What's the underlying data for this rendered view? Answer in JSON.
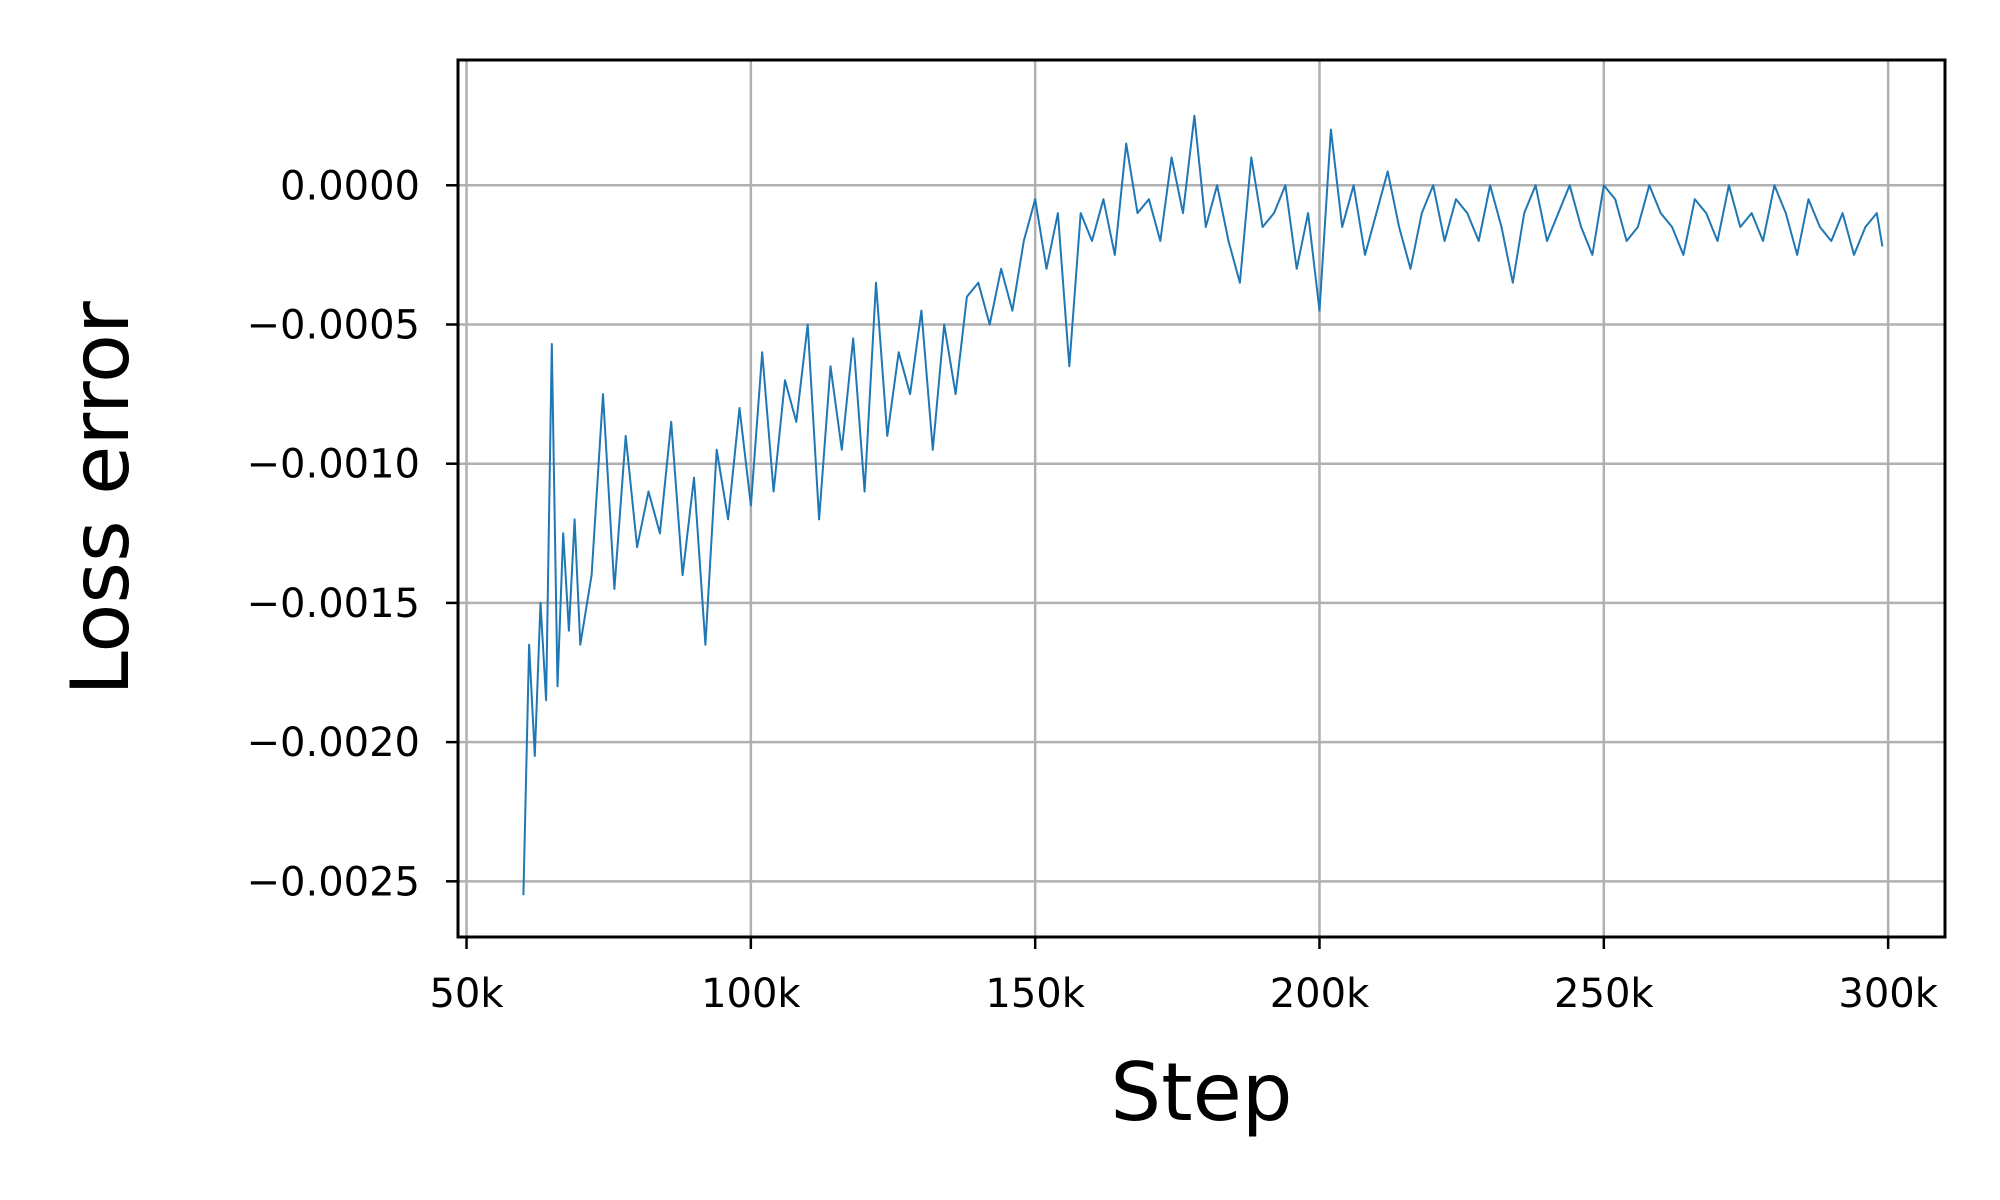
{
  "chart_data": {
    "type": "line",
    "title": "",
    "xlabel": "Step",
    "ylabel": "Loss error",
    "xlim": [
      48500,
      310000
    ],
    "ylim": [
      -0.0027,
      0.00045
    ],
    "grid": true,
    "x_ticks": [
      {
        "value": 50000,
        "label": "50k"
      },
      {
        "value": 100000,
        "label": "100k"
      },
      {
        "value": 150000,
        "label": "150k"
      },
      {
        "value": 200000,
        "label": "200k"
      },
      {
        "value": 250000,
        "label": "250k"
      },
      {
        "value": 300000,
        "label": "300k"
      }
    ],
    "y_ticks": [
      {
        "value": 0.0,
        "label": "0.0000"
      },
      {
        "value": -0.0005,
        "label": "−0.0005"
      },
      {
        "value": -0.001,
        "label": "−0.0010"
      },
      {
        "value": -0.0015,
        "label": "−0.0015"
      },
      {
        "value": -0.002,
        "label": "−0.0020"
      },
      {
        "value": -0.0025,
        "label": "−0.0025"
      }
    ],
    "series": [
      {
        "color": "#1f77b4",
        "x": [
          60000,
          61000,
          62000,
          63000,
          64000,
          65000,
          66000,
          67000,
          68000,
          69000,
          70000,
          72000,
          74000,
          76000,
          78000,
          80000,
          82000,
          84000,
          86000,
          88000,
          90000,
          92000,
          94000,
          96000,
          98000,
          100000,
          102000,
          104000,
          106000,
          108000,
          110000,
          112000,
          114000,
          116000,
          118000,
          120000,
          122000,
          124000,
          126000,
          128000,
          130000,
          132000,
          134000,
          136000,
          138000,
          140000,
          142000,
          144000,
          146000,
          148000,
          150000,
          152000,
          154000,
          156000,
          158000,
          160000,
          162000,
          164000,
          166000,
          168000,
          170000,
          172000,
          174000,
          176000,
          178000,
          180000,
          182000,
          184000,
          186000,
          188000,
          190000,
          192000,
          194000,
          196000,
          198000,
          200000,
          202000,
          204000,
          206000,
          208000,
          210000,
          212000,
          214000,
          216000,
          218000,
          220000,
          222000,
          224000,
          226000,
          228000,
          230000,
          232000,
          234000,
          236000,
          238000,
          240000,
          242000,
          244000,
          246000,
          248000,
          250000,
          252000,
          254000,
          256000,
          258000,
          260000,
          262000,
          264000,
          266000,
          268000,
          270000,
          272000,
          274000,
          276000,
          278000,
          280000,
          282000,
          284000,
          286000,
          288000,
          290000,
          292000,
          294000,
          296000,
          298000,
          299000
        ],
        "y": [
          -0.00255,
          -0.00165,
          -0.00205,
          -0.0015,
          -0.00185,
          -0.00057,
          -0.0018,
          -0.00125,
          -0.0016,
          -0.0012,
          -0.00165,
          -0.0014,
          -0.00075,
          -0.00145,
          -0.0009,
          -0.0013,
          -0.0011,
          -0.00125,
          -0.00085,
          -0.0014,
          -0.00105,
          -0.00165,
          -0.00095,
          -0.0012,
          -0.0008,
          -0.00115,
          -0.0006,
          -0.0011,
          -0.0007,
          -0.00085,
          -0.0005,
          -0.0012,
          -0.00065,
          -0.00095,
          -0.00055,
          -0.0011,
          -0.00035,
          -0.0009,
          -0.0006,
          -0.00075,
          -0.00045,
          -0.00095,
          -0.0005,
          -0.00075,
          -0.0004,
          -0.00035,
          -0.0005,
          -0.0003,
          -0.00045,
          -0.0002,
          -5e-05,
          -0.0003,
          -0.0001,
          -0.00065,
          -0.0001,
          -0.0002,
          -5e-05,
          -0.00025,
          0.00015,
          -0.0001,
          -5e-05,
          -0.0002,
          0.0001,
          -0.0001,
          0.00025,
          -0.00015,
          0.0,
          -0.0002,
          -0.00035,
          0.0001,
          -0.00015,
          -0.0001,
          0.0,
          -0.0003,
          -0.0001,
          -0.00045,
          0.0002,
          -0.00015,
          0.0,
          -0.00025,
          -0.0001,
          5e-05,
          -0.00015,
          -0.0003,
          -0.0001,
          0.0,
          -0.0002,
          -5e-05,
          -0.0001,
          -0.0002,
          0.0,
          -0.00015,
          -0.00035,
          -0.0001,
          0.0,
          -0.0002,
          -0.0001,
          0.0,
          -0.00015,
          -0.00025,
          0.0,
          -5e-05,
          -0.0002,
          -0.00015,
          0.0,
          -0.0001,
          -0.00015,
          -0.00025,
          -5e-05,
          -0.0001,
          -0.0002,
          0.0,
          -0.00015,
          -0.0001,
          -0.0002,
          0.0,
          -0.0001,
          -0.00025,
          -5e-05,
          -0.00015,
          -0.0002,
          -0.0001,
          -0.00025,
          -0.00015,
          -0.0001,
          -0.00022
        ]
      }
    ]
  }
}
